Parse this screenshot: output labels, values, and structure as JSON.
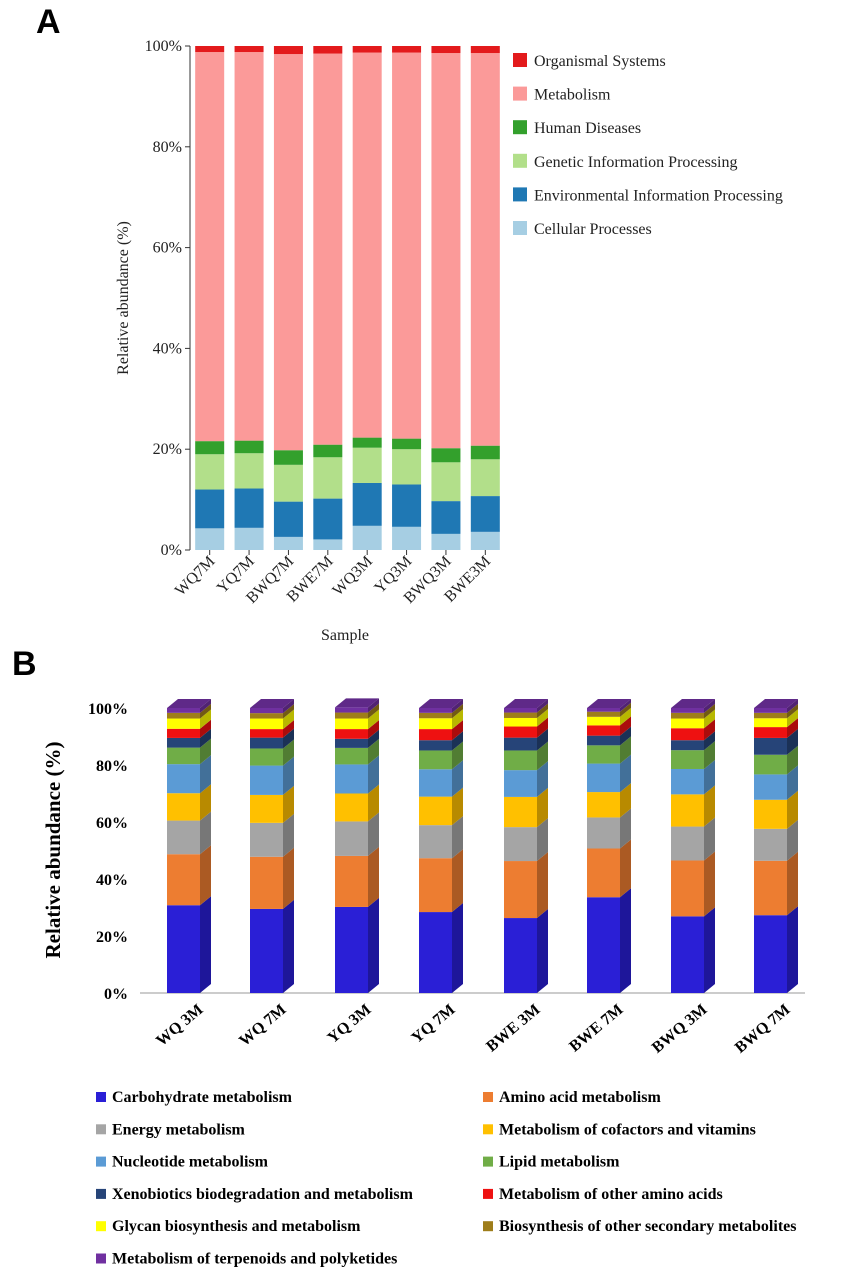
{
  "chart_data": [
    {
      "panel": "A",
      "type": "bar",
      "stacked": true,
      "percent": true,
      "xlabel": "Sample",
      "ylabel": "Relative abundance (%)",
      "categories": [
        "WQ7M",
        "YQ7M",
        "BWQ7M",
        "BWE7M",
        "WQ3M",
        "YQ3M",
        "BWQ3M",
        "BWE3M"
      ],
      "yticks": [
        "0%",
        "20%",
        "40%",
        "60%",
        "80%",
        "100%"
      ],
      "ylim": [
        0,
        100
      ],
      "series": [
        {
          "name": "Cellular Processes",
          "color": "#a6cee3",
          "values": [
            4.3,
            4.4,
            2.6,
            2.1,
            4.8,
            4.6,
            3.2,
            3.6
          ]
        },
        {
          "name": "Environmental Information Processing",
          "color": "#1f78b4",
          "values": [
            7.7,
            7.8,
            7.0,
            8.1,
            8.5,
            8.4,
            6.5,
            7.1
          ]
        },
        {
          "name": "Genetic Information Processing",
          "color": "#b2df8a",
          "values": [
            7.0,
            7.0,
            7.3,
            8.2,
            7.0,
            7.0,
            7.7,
            7.3
          ]
        },
        {
          "name": "Human Diseases",
          "color": "#33a02c",
          "values": [
            2.6,
            2.5,
            2.9,
            2.5,
            2.0,
            2.1,
            2.8,
            2.7
          ]
        },
        {
          "name": "Metabolism",
          "color": "#fb9a99",
          "values": [
            77.2,
            77.1,
            78.6,
            77.6,
            76.4,
            76.6,
            78.4,
            77.9
          ]
        },
        {
          "name": "Organismal Systems",
          "color": "#e31a1c",
          "values": [
            1.2,
            1.2,
            1.6,
            1.5,
            1.3,
            1.3,
            1.4,
            1.4
          ]
        }
      ],
      "legend_order": [
        "Organismal Systems",
        "Metabolism",
        "Human Diseases",
        "Genetic Information Processing",
        "Environmental Information Processing",
        "Cellular Processes"
      ]
    },
    {
      "panel": "B",
      "type": "bar",
      "stacked": true,
      "percent": true,
      "style": "3d",
      "xlabel": "",
      "ylabel": "Relative abundance (%)",
      "categories": [
        "WQ 3M",
        "WQ 7M",
        "YQ 3M",
        "YQ 7M",
        "BWE 3M",
        "BWE 7M",
        "BWQ 3M",
        "BWQ 7M"
      ],
      "yticks": [
        "0%",
        "20%",
        "40%",
        "60%",
        "80%",
        "100%"
      ],
      "ylim": [
        0,
        100
      ],
      "series": [
        {
          "name": "Carbohydrate metabolism",
          "color": "#2a1fd6",
          "values": [
            30.8,
            29.5,
            30.2,
            28.4,
            26.3,
            33.6,
            26.9,
            27.3
          ]
        },
        {
          "name": "Amino acid metabolism",
          "color": "#ed7d31",
          "values": [
            17.9,
            18.3,
            17.9,
            18.9,
            20.0,
            17.1,
            19.6,
            19.1
          ]
        },
        {
          "name": "Energy metabolism",
          "color": "#a5a5a5",
          "values": [
            11.8,
            11.9,
            12.1,
            11.6,
            11.9,
            10.9,
            11.9,
            11.2
          ]
        },
        {
          "name": "Metabolism of cofactors and vitamins",
          "color": "#ffc000",
          "values": [
            9.6,
            9.8,
            9.8,
            10.0,
            10.6,
            8.9,
            11.3,
            10.2
          ]
        },
        {
          "name": "Nucleotide metabolism",
          "color": "#5b9bd5",
          "values": [
            10.2,
            10.3,
            10.2,
            9.6,
            9.4,
            10.0,
            8.9,
            8.9
          ]
        },
        {
          "name": "Lipid metabolism",
          "color": "#70ad47",
          "values": [
            5.8,
            6.0,
            5.8,
            6.6,
            6.9,
            6.4,
            6.6,
            6.9
          ]
        },
        {
          "name": "Xenobiotics biodegradation and metabolism",
          "color": "#264478",
          "values": [
            3.4,
            3.8,
            3.2,
            3.6,
            4.5,
            3.4,
            3.5,
            5.9
          ]
        },
        {
          "name": "Metabolism of other amino acids",
          "color": "#ee1111",
          "values": [
            3.2,
            3.0,
            3.4,
            3.9,
            3.9,
            3.6,
            4.2,
            3.8
          ]
        },
        {
          "name": "Glycan biosynthesis and metabolism",
          "color": "#ffff00",
          "values": [
            3.6,
            3.7,
            3.7,
            3.8,
            3.0,
            3.0,
            3.4,
            3.1
          ]
        },
        {
          "name": "Biosynthesis of other secondary metabolites",
          "color": "#9e7d1a",
          "values": [
            2.0,
            1.9,
            2.1,
            1.9,
            1.9,
            1.8,
            2.0,
            1.9
          ]
        },
        {
          "name": "Metabolism of terpenoids and polyketides",
          "color": "#7030a0",
          "values": [
            1.7,
            1.8,
            1.8,
            1.7,
            1.6,
            1.3,
            1.7,
            1.7
          ]
        }
      ]
    }
  ]
}
